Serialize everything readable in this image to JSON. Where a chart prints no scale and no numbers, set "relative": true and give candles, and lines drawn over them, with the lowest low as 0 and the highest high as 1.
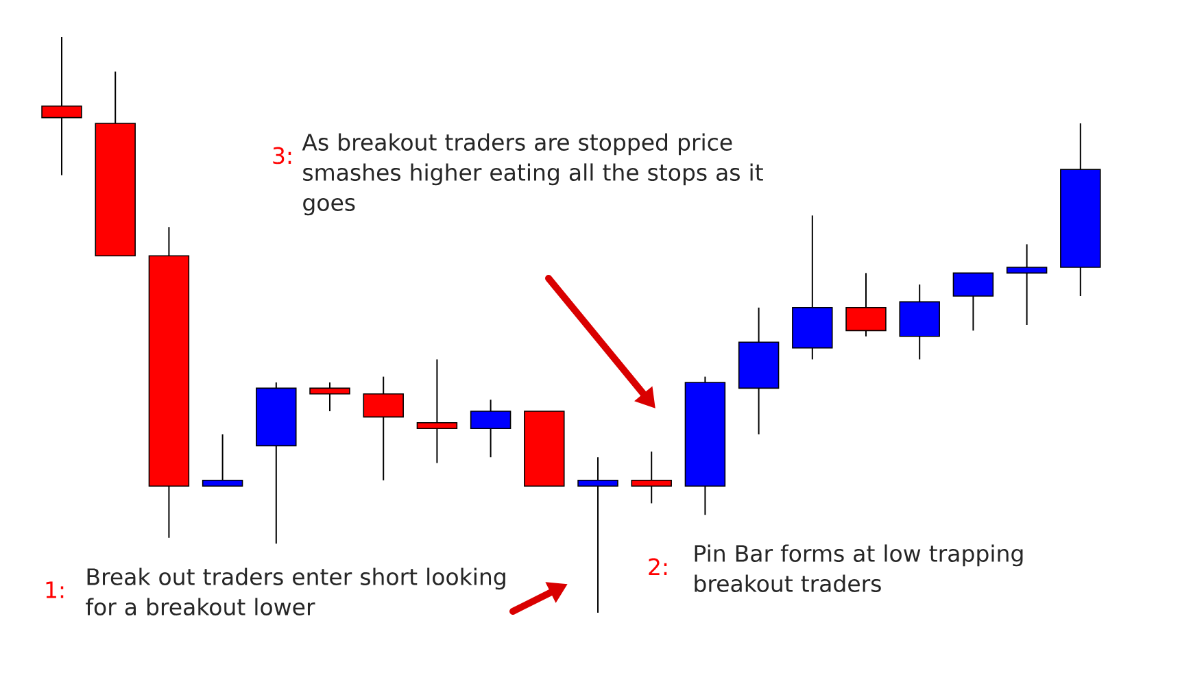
{
  "chart_data": {
    "type": "candlestick",
    "relative": true,
    "categories": [
      null,
      null,
      null,
      null,
      null,
      null,
      null,
      null,
      null,
      null,
      null,
      null,
      null,
      null,
      null,
      null,
      null,
      null,
      null,
      null
    ],
    "ohlc": [
      [
        0.88,
        1.0,
        0.76,
        0.86
      ],
      [
        0.85,
        0.94,
        0.62,
        0.62
      ],
      [
        0.62,
        0.67,
        0.13,
        0.22
      ],
      [
        0.22,
        0.31,
        0.22,
        0.23
      ],
      [
        0.29,
        0.4,
        0.12,
        0.39
      ],
      [
        0.39,
        0.4,
        0.35,
        0.38
      ],
      [
        0.38,
        0.41,
        0.23,
        0.34
      ],
      [
        0.33,
        0.44,
        0.26,
        0.32
      ],
      [
        0.32,
        0.37,
        0.27,
        0.35
      ],
      [
        0.35,
        0.35,
        0.22,
        0.22
      ],
      [
        0.22,
        0.27,
        0.0,
        0.23
      ],
      [
        0.23,
        0.28,
        0.19,
        0.22
      ],
      [
        0.22,
        0.41,
        0.17,
        0.4
      ],
      [
        0.39,
        0.53,
        0.31,
        0.47
      ],
      [
        0.46,
        0.69,
        0.44,
        0.53
      ],
      [
        0.53,
        0.59,
        0.48,
        0.49
      ],
      [
        0.48,
        0.57,
        0.44,
        0.54
      ],
      [
        0.55,
        0.59,
        0.49,
        0.59
      ],
      [
        0.59,
        0.64,
        0.5,
        0.6
      ],
      [
        0.6,
        0.85,
        0.55,
        0.77
      ]
    ],
    "colors": [
      "#ff0000",
      "#ff0000",
      "#ff0000",
      "#0000ff",
      "#0000ff",
      "#ff0000",
      "#ff0000",
      "#ff0000",
      "#0000ff",
      "#ff0000",
      "#0000ff",
      "#ff0000",
      "#0000ff",
      "#0000ff",
      "#0000ff",
      "#ff0000",
      "#0000ff",
      "#0000ff",
      "#0000ff",
      "#0000ff"
    ],
    "annotations": [
      "1:",
      "Break out traders enter short looking for a breakout lower",
      "2:",
      "Pin Bar forms at low trapping breakout traders",
      "3:",
      "As breakout traders are stopped price smashes higher eating all the stops as it goes"
    ]
  }
}
